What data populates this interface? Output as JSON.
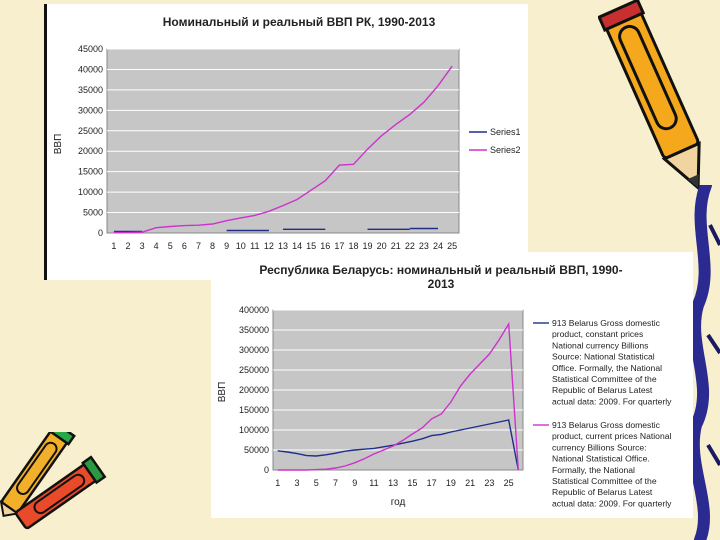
{
  "charts": [
    {
      "title": "Номинальный и реальный ВВП РК, 1990-2013",
      "ylabel": "ВВП",
      "xlabel": "",
      "legend": [
        "Series1",
        "Series2"
      ]
    },
    {
      "title_line1": "Республика Беларусь: номинальный и реальный ВВП, 1990-",
      "title_line2": "2013",
      "ylabel": "ВВП",
      "xlabel": "год",
      "legend1": [
        "913 Belarus Gross domestic",
        "product, constant prices",
        "National currency Billions",
        "Source: National Statistical",
        "Office. Formally, the National",
        "Statistical Committee of the",
        "Republic of Belarus Latest",
        "actual data: 2009. For quarterly"
      ],
      "legend2": [
        "913 Belarus Gross domestic",
        "product, current prices National",
        "currency Billions Source:",
        "National Statistical Office.",
        "Formally, the National",
        "Statistical Committee of the",
        "Republic of Belarus Latest",
        "actual data: 2009. For quarterly"
      ]
    }
  ],
  "chart_data": [
    {
      "type": "line",
      "title": "Номинальный и реальный ВВП РК, 1990-2013",
      "xlabel": "",
      "ylabel": "ВВП",
      "categories": [
        1,
        2,
        3,
        4,
        5,
        6,
        7,
        8,
        9,
        10,
        11,
        12,
        13,
        14,
        15,
        16,
        17,
        18,
        19,
        20,
        21,
        22,
        23,
        24,
        25
      ],
      "ylim": [
        0,
        45000
      ],
      "yticks": [
        0,
        5000,
        10000,
        15000,
        20000,
        25000,
        30000,
        35000,
        40000,
        45000
      ],
      "grid": "horizontal",
      "legend_position": "right",
      "series": [
        {
          "name": "Series1",
          "color": "#1f2e8c",
          "segments": [
            {
              "x": [
                1,
                2,
                3
              ],
              "values": [
                400,
                400,
                400
              ]
            },
            {
              "x": [
                9,
                10,
                11,
                12
              ],
              "values": [
                600,
                600,
                600,
                600
              ]
            },
            {
              "x": [
                13,
                14,
                15,
                16
              ],
              "values": [
                900,
                900,
                900,
                900
              ]
            },
            {
              "x": [
                19,
                20,
                21,
                22
              ],
              "values": [
                900,
                900,
                900,
                900
              ]
            },
            {
              "x": [
                22,
                23,
                24
              ],
              "values": [
                1100,
                1100,
                1100
              ]
            }
          ]
        },
        {
          "name": "Series2",
          "color": "#cc33cc",
          "segments": [
            {
              "x": [
                1,
                2,
                3,
                4,
                5,
                6,
                7,
                8,
                9,
                10,
                11,
                12,
                13,
                14,
                15,
                16,
                17,
                18,
                19,
                20,
                21,
                22,
                23,
                24,
                25
              ],
              "values": [
                100,
                100,
                200,
                1300,
                1600,
                1800,
                1900,
                2200,
                3000,
                3700,
                4300,
                5300,
                6700,
                8200,
                10500,
                12800,
                16600,
                16800,
                20500,
                23800,
                26500,
                29000,
                32000,
                36000,
                40800
              ]
            }
          ]
        }
      ]
    },
    {
      "type": "line",
      "title": "Республика Беларусь: номинальный и реальный ВВП, 1990-2013",
      "xlabel": "год",
      "ylabel": "ВВП",
      "categories": [
        1,
        2,
        3,
        4,
        5,
        6,
        7,
        8,
        9,
        10,
        11,
        12,
        13,
        14,
        15,
        16,
        17,
        18,
        19,
        20,
        21,
        22,
        23,
        24,
        25,
        26
      ],
      "xticks": [
        1,
        3,
        5,
        7,
        9,
        11,
        13,
        15,
        17,
        19,
        21,
        23,
        25
      ],
      "ylim": [
        0,
        400000
      ],
      "yticks": [
        0,
        50000,
        100000,
        150000,
        200000,
        250000,
        300000,
        350000,
        400000
      ],
      "grid": "horizontal",
      "legend_position": "right",
      "series": [
        {
          "name": "913 Belarus Gross domestic product, constant prices National currency Billions Source: National Statistical Office. Formally, the National Statistical Committee of the Republic of Belarus Latest actual data: 2009. For quarterly",
          "color": "#1f2e8c",
          "x": [
            1,
            2,
            3,
            4,
            5,
            6,
            7,
            8,
            9,
            10,
            11,
            12,
            13,
            14,
            15,
            16,
            17,
            18,
            19,
            20,
            21,
            22,
            23,
            24,
            25,
            26
          ],
          "values": [
            48000,
            45000,
            41000,
            36000,
            35000,
            38000,
            42000,
            47000,
            50000,
            52000,
            54000,
            58000,
            62000,
            67000,
            72000,
            78000,
            86000,
            89000,
            95000,
            100000,
            105000,
            110000,
            115000,
            120000,
            125000,
            0
          ]
        },
        {
          "name": "913 Belarus Gross domestic product, current prices National currency Billions Source: National Statistical Office. Formally, the National Statistical Committee of the Republic of Belarus Latest actual data: 2009. For quarterly",
          "color": "#cc33cc",
          "x": [
            1,
            2,
            3,
            4,
            5,
            6,
            7,
            8,
            9,
            10,
            11,
            12,
            13,
            14,
            15,
            16,
            17,
            18,
            19,
            20,
            21,
            22,
            23,
            24,
            25,
            26
          ],
          "values": [
            100,
            100,
            100,
            100,
            1000,
            2000,
            5000,
            10000,
            18000,
            28000,
            40000,
            50000,
            60000,
            74000,
            90000,
            105000,
            128000,
            140000,
            170000,
            210000,
            240000,
            265000,
            290000,
            325000,
            365000,
            0
          ]
        }
      ]
    }
  ]
}
